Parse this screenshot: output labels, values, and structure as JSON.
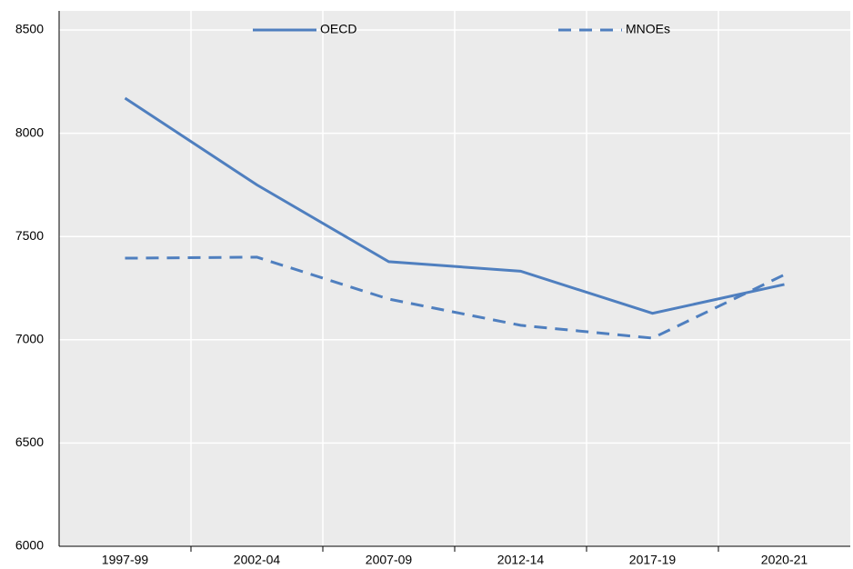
{
  "chart_data": {
    "type": "line",
    "categories": [
      "1997-99",
      "2002-04",
      "2007-09",
      "2012-14",
      "2017-19",
      "2020-21"
    ],
    "series": [
      {
        "name": "OECD",
        "color": "#4f7fbf",
        "dashed": false,
        "values": [
          8170,
          7750,
          7378,
          7332,
          7128,
          7268
        ]
      },
      {
        "name": "MNOEs",
        "color": "#4f7fbf",
        "dashed": true,
        "values": [
          7395,
          7400,
          7197,
          7070,
          7008,
          7315
        ]
      }
    ],
    "ylim": [
      6000,
      8500
    ],
    "yticks": [
      6000,
      6500,
      7000,
      7500,
      8000,
      8500
    ],
    "grid": true,
    "legend": "top"
  }
}
